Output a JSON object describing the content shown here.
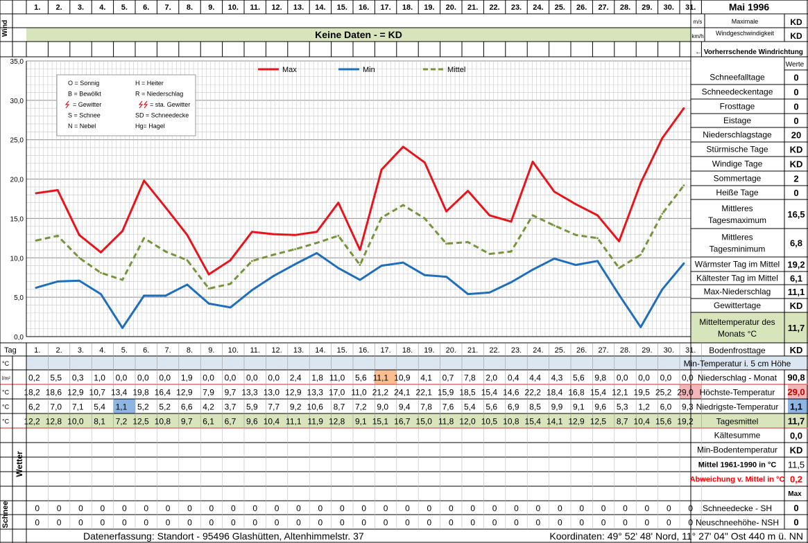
{
  "title": "Mai 1996",
  "days": [
    "1.",
    "2.",
    "3.",
    "4.",
    "5.",
    "6.",
    "7.",
    "8.",
    "9.",
    "10.",
    "11.",
    "12.",
    "13.",
    "14.",
    "15.",
    "16.",
    "17.",
    "18.",
    "19.",
    "20.",
    "21.",
    "22.",
    "23.",
    "24.",
    "25.",
    "26.",
    "27.",
    "28.",
    "29.",
    "30.",
    "31."
  ],
  "wind": {
    "label": "Wind",
    "no_data": "Keine Daten -  = KD",
    "unit_ms": "m/s",
    "unit_kmh": "km/h",
    "max_label_1": "Maximale",
    "max_label_2": "Windgeschwindigkeit",
    "max_ms": "KD",
    "max_kmh": "KD",
    "direction_label": "← Vorherrschende Windrichtung"
  },
  "chart_data": {
    "type": "line",
    "categories": [
      "1.",
      "2.",
      "3.",
      "4.",
      "5.",
      "6.",
      "7.",
      "8.",
      "9.",
      "10.",
      "11.",
      "12.",
      "13.",
      "14.",
      "15.",
      "16.",
      "17.",
      "18.",
      "19.",
      "20.",
      "21.",
      "22.",
      "23.",
      "24.",
      "25.",
      "26.",
      "27.",
      "28.",
      "29.",
      "30.",
      "31."
    ],
    "ylim": [
      0,
      35
    ],
    "yticks": [
      "0,0",
      "5,0",
      "10,0",
      "15,0",
      "20,0",
      "25,0",
      "30,0",
      "35,0"
    ],
    "grid": true,
    "legend_position": "top",
    "series": [
      {
        "name": "Max",
        "color": "#e8141c",
        "style": "solid",
        "values": [
          18.2,
          18.6,
          12.9,
          10.7,
          13.4,
          19.8,
          16.4,
          12.9,
          7.9,
          9.7,
          13.3,
          13.0,
          12.9,
          13.3,
          17.0,
          11.0,
          21.2,
          24.1,
          22.1,
          15.9,
          18.5,
          15.4,
          14.6,
          22.2,
          18.4,
          16.8,
          15.4,
          12.1,
          19.5,
          25.2,
          29.0
        ]
      },
      {
        "name": "Min",
        "color": "#1f6ebc",
        "style": "solid",
        "values": [
          6.2,
          7.0,
          7.1,
          5.4,
          1.1,
          5.2,
          5.2,
          6.6,
          4.2,
          3.7,
          5.9,
          7.7,
          9.2,
          10.6,
          8.7,
          7.2,
          9.0,
          9.4,
          7.8,
          7.6,
          5.4,
          5.6,
          6.9,
          8.5,
          9.9,
          9.1,
          9.6,
          5.3,
          1.2,
          6.0,
          9.3
        ]
      },
      {
        "name": "Mittel",
        "color": "#77933c",
        "style": "dashed",
        "values": [
          12.2,
          12.8,
          10.0,
          8.1,
          7.2,
          12.5,
          10.8,
          9.7,
          6.1,
          6.7,
          9.6,
          10.4,
          11.1,
          11.9,
          12.8,
          9.1,
          15.1,
          16.7,
          15.0,
          11.8,
          12.0,
          10.5,
          10.8,
          15.4,
          14.1,
          12.9,
          12.5,
          8.7,
          10.4,
          15.6,
          19.2
        ]
      }
    ]
  },
  "symbol_legend": [
    [
      "O = Sonnig",
      "H = Heiter"
    ],
    [
      "B = Bewölkt",
      "R = Niederschlag"
    ],
    [
      "= Gewitter",
      "= sta. Gewitter"
    ],
    [
      "S = Schnee",
      "SD = Schneedecke"
    ],
    [
      "N = Nebel",
      "Hg= Hagel"
    ]
  ],
  "stats_header": "Werte",
  "stats": [
    {
      "label": "Schneefalltage",
      "value": "0"
    },
    {
      "label": "Schneedeckentage",
      "value": "0"
    },
    {
      "label": "Frosttage",
      "value": "0"
    },
    {
      "label": "Eistage",
      "value": "0"
    },
    {
      "label": "Niederschlagstage",
      "value": "20"
    },
    {
      "label": "Stürmische Tage",
      "value": "KD"
    },
    {
      "label": "Windige Tage",
      "value": "KD"
    },
    {
      "label": "Sommertage",
      "value": "2"
    },
    {
      "label": "Heiße Tage",
      "value": "0"
    },
    {
      "label": "Mittleres Tagesmaximum",
      "value": "16,5"
    },
    {
      "label": "Mittleres Tagesminimum",
      "value": "6,8"
    },
    {
      "label": "Wärmster Tag im Mittel",
      "value": "19,2"
    },
    {
      "label": "Kältester Tag im Mittel",
      "value": "6,1"
    },
    {
      "label": "Max-Niederschlag",
      "value": "11,1"
    },
    {
      "label": "Gewittertage",
      "value": "KD"
    },
    {
      "label": "Mitteltemperatur des Monats °C",
      "value": "11,7"
    }
  ],
  "table": {
    "day_label": "Tag",
    "bodenfrost_label": "Bodenfrosttage",
    "bodenfrost_value": "KD",
    "rows": [
      {
        "unit": "°C",
        "label": "Min-Temperatur i. 5 cm Höhe",
        "total": "",
        "values": [
          "",
          "",
          "",
          "",
          "",
          "",
          "",
          "",
          "",
          "",
          "",
          "",
          "",
          "",
          "",
          "",
          "",
          "",
          "",
          "",
          "",
          "",
          "",
          "",
          "",
          "",
          "",
          "",
          "",
          "",
          ""
        ]
      },
      {
        "unit": "l/m²",
        "label": "Niederschlag - Monat",
        "total": "90,8",
        "values": [
          "0,2",
          "5,5",
          "0,3",
          "1,0",
          "0,0",
          "0,0",
          "0,0",
          "1,9",
          "0,0",
          "0,0",
          "0,0",
          "0,0",
          "2,4",
          "1,8",
          "11,0",
          "5,6",
          "11,1",
          "10,9",
          "4,1",
          "0,7",
          "7,8",
          "2,0",
          "0,4",
          "4,4",
          "4,3",
          "5,6",
          "9,8",
          "0,0",
          "0,0",
          "0,0",
          "0,0"
        ]
      },
      {
        "unit": "°C",
        "label": "Höchste-Temperatur",
        "total": "29,0",
        "values": [
          "18,2",
          "18,6",
          "12,9",
          "10,7",
          "13,4",
          "19,8",
          "16,4",
          "12,9",
          "7,9",
          "9,7",
          "13,3",
          "13,0",
          "12,9",
          "13,3",
          "17,0",
          "11,0",
          "21,2",
          "24,1",
          "22,1",
          "15,9",
          "18,5",
          "15,4",
          "14,6",
          "22,2",
          "18,4",
          "16,8",
          "15,4",
          "12,1",
          "19,5",
          "25,2",
          "29,0"
        ]
      },
      {
        "unit": "°C",
        "label": "Niedrigste-Temperatur",
        "total": "1,1",
        "values": [
          "6,2",
          "7,0",
          "7,1",
          "5,4",
          "1,1",
          "5,2",
          "5,2",
          "6,6",
          "4,2",
          "3,7",
          "5,9",
          "7,7",
          "9,2",
          "10,6",
          "8,7",
          "7,2",
          "9,0",
          "9,4",
          "7,8",
          "7,6",
          "5,4",
          "5,6",
          "6,9",
          "8,5",
          "9,9",
          "9,1",
          "9,6",
          "5,3",
          "1,2",
          "6,0",
          "9,3"
        ]
      },
      {
        "unit": "°C",
        "label": "Tagesmittel",
        "total": "11,7",
        "values": [
          "12,2",
          "12,8",
          "10,0",
          "8,1",
          "7,2",
          "12,5",
          "10,8",
          "9,7",
          "6,1",
          "6,7",
          "9,6",
          "10,4",
          "11,1",
          "11,9",
          "12,8",
          "9,1",
          "15,1",
          "16,7",
          "15,0",
          "11,8",
          "12,0",
          "10,5",
          "10,8",
          "15,4",
          "14,1",
          "12,9",
          "12,5",
          "8,7",
          "10,4",
          "15,6",
          "19,2"
        ]
      }
    ],
    "extra": [
      {
        "label": "Kältesumme",
        "value": "0,0"
      },
      {
        "label": "Min-Bodentemperatur",
        "value": "KD"
      },
      {
        "label": "Mittel 1961-1990 in °C",
        "value": "11,5"
      },
      {
        "label": "Abweichung v. Mittel in °C",
        "value": "0,2"
      }
    ],
    "wetter_label": "Wetter",
    "max_label": "Max",
    "schnee_label": "Schnee",
    "snow_rows": [
      {
        "label": "Schneedecke -   SH",
        "total": "0",
        "values": [
          "0",
          "0",
          "0",
          "0",
          "0",
          "0",
          "0",
          "0",
          "0",
          "0",
          "0",
          "0",
          "0",
          "0",
          "0",
          "0",
          "0",
          "0",
          "0",
          "0",
          "0",
          "0",
          "0",
          "0",
          "0",
          "0",
          "0",
          "0",
          "0",
          "0",
          "0"
        ]
      },
      {
        "label": "Neuschneehöhe-  NSH",
        "total": "0",
        "values": [
          "0",
          "0",
          "0",
          "0",
          "0",
          "0",
          "0",
          "0",
          "0",
          "0",
          "0",
          "0",
          "0",
          "0",
          "0",
          "0",
          "0",
          "0",
          "0",
          "0",
          "0",
          "0",
          "0",
          "0",
          "0",
          "0",
          "0",
          "0",
          "0",
          "0",
          "0"
        ]
      }
    ]
  },
  "footer": {
    "location": "Datenerfassung:  Standort -   95496  Glashütten, Altenhimmelstr. 37",
    "coords": "Koordinaten:  49° 52' 48' Nord,  11° 27' 04\" Ost   440 m ü. NN"
  },
  "colors": {
    "max": "#e8141c",
    "min": "#1f6ebc",
    "mittel": "#77933c",
    "green_band": "#d8e4bc",
    "blue_band": "#dce6f1",
    "highlight_orange": "#fabf8f",
    "highlight_blue": "#8db4e2",
    "highlight_pink": "#f4b6b6",
    "red_text": "#ff0000",
    "red_rule": "#e46c6c"
  }
}
